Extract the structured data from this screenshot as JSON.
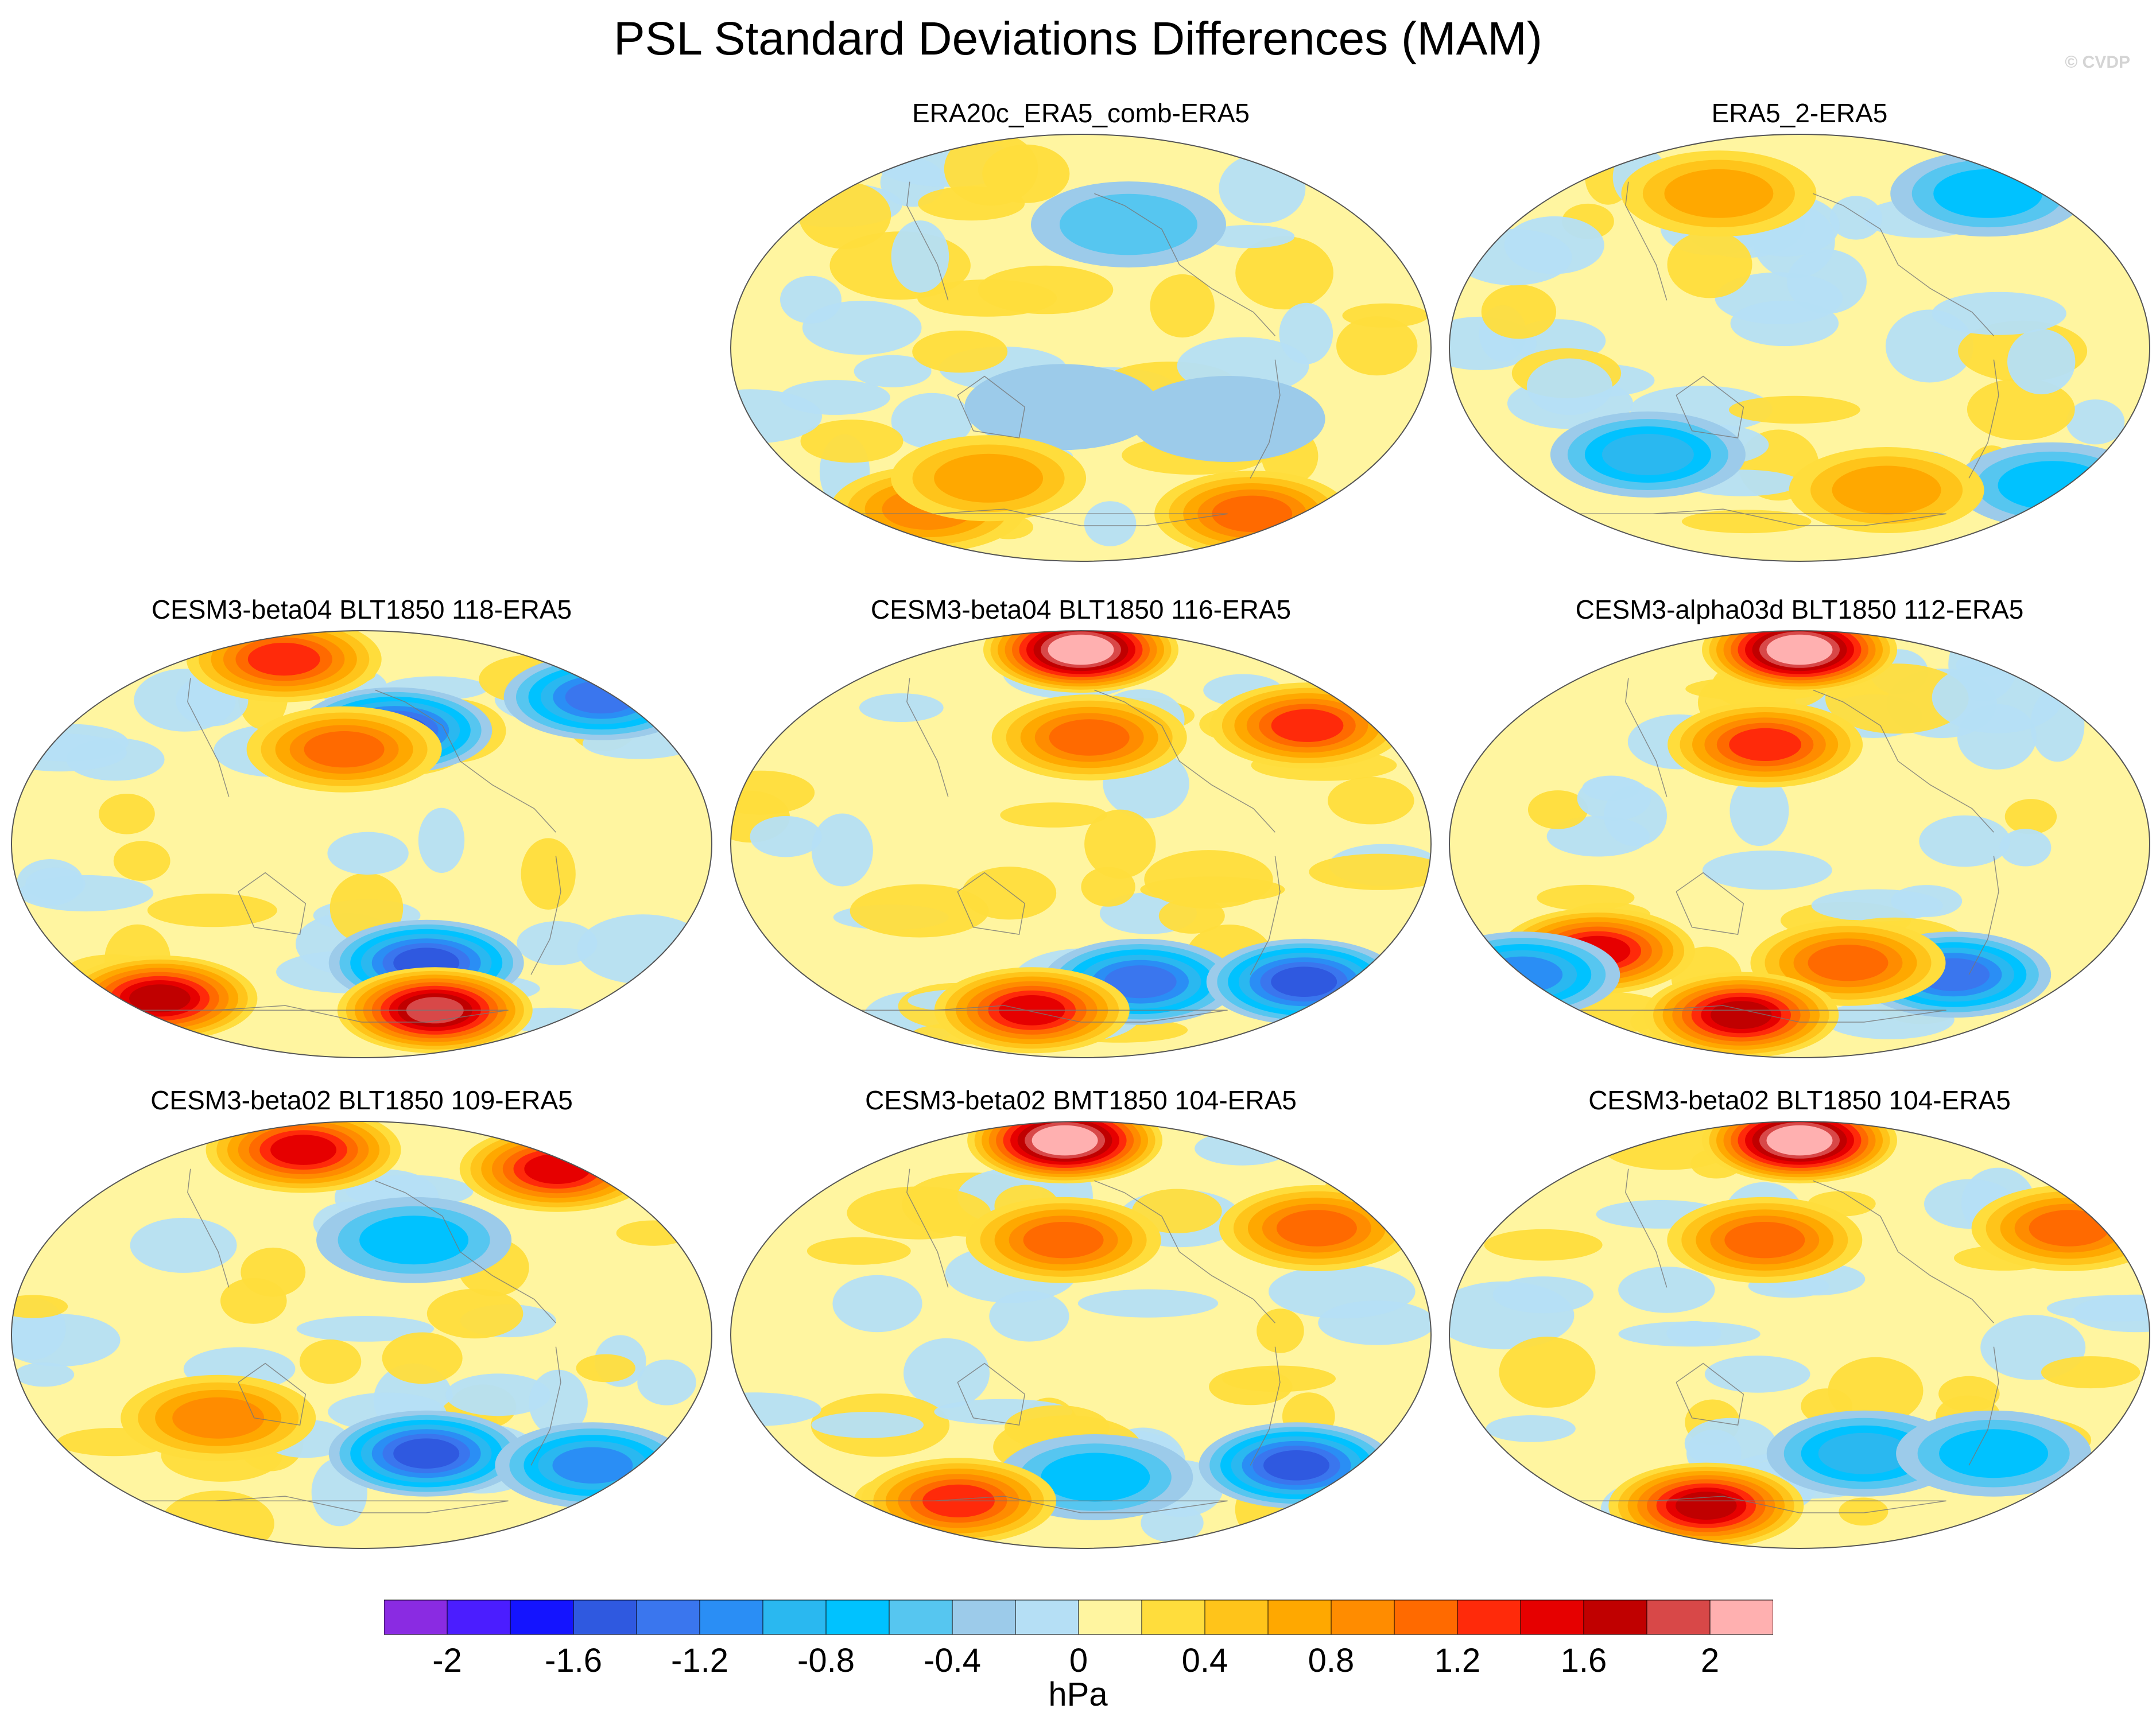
{
  "figure": {
    "title": "PSL Standard Deviations Differences (MAM)",
    "copyright": "© CVDP",
    "units": "hPa"
  },
  "panels": [
    {
      "title": "ERA20c_ERA5_comb-ERA5",
      "intensity": "weak",
      "features": [
        {
          "lon": -150,
          "lat": 52,
          "sign": "neg",
          "mag": 0.35
        },
        {
          "lon": -100,
          "lat": -30,
          "sign": "neg",
          "mag": 0.3
        },
        {
          "lon": 170,
          "lat": -25,
          "sign": "neg",
          "mag": 0.3
        },
        {
          "lon": -40,
          "lat": -70,
          "sign": "pos",
          "mag": 0.9
        },
        {
          "lon": 60,
          "lat": -68,
          "sign": "pos",
          "mag": 0.8
        },
        {
          "lon": 120,
          "lat": -55,
          "sign": "pos",
          "mag": 0.5
        }
      ]
    },
    {
      "title": "ERA5_2-ERA5",
      "intensity": "weak",
      "features": [
        {
          "lon": 90,
          "lat": -45,
          "sign": "neg",
          "mag": 0.8
        },
        {
          "lon": -10,
          "lat": -58,
          "sign": "neg",
          "mag": 0.7
        },
        {
          "lon": -40,
          "lat": 65,
          "sign": "neg",
          "mag": 0.7
        },
        {
          "lon": 120,
          "lat": 65,
          "sign": "pos",
          "mag": 0.5
        },
        {
          "lon": -120,
          "lat": -60,
          "sign": "pos",
          "mag": 0.6
        }
      ]
    },
    {
      "title": "CESM3-beta04 BLT1850 118-ERA5",
      "intensity": "strong",
      "features": [
        {
          "lon": -160,
          "lat": 48,
          "sign": "neg",
          "mag": 1.3
        },
        {
          "lon": 170,
          "lat": 40,
          "sign": "pos",
          "mag": 1.0
        },
        {
          "lon": -10,
          "lat": 62,
          "sign": "neg",
          "mag": 1.2
        },
        {
          "lon": -140,
          "lat": -50,
          "sign": "neg",
          "mag": 1.3
        },
        {
          "lon": -120,
          "lat": -70,
          "sign": "pos",
          "mag": 1.9
        },
        {
          "lon": 30,
          "lat": -65,
          "sign": "pos",
          "mag": 1.5
        },
        {
          "lon": 100,
          "lat": 78,
          "sign": "pos",
          "mag": 1.2
        }
      ]
    },
    {
      "title": "CESM3-beta04 BLT1850 116-ERA5",
      "intensity": "strong",
      "features": [
        {
          "lon": 180,
          "lat": 82,
          "sign": "pos",
          "mag": 2.1
        },
        {
          "lon": -175,
          "lat": 45,
          "sign": "pos",
          "mag": 1.0
        },
        {
          "lon": -40,
          "lat": 50,
          "sign": "pos",
          "mag": 1.1
        },
        {
          "lon": -140,
          "lat": -58,
          "sign": "neg",
          "mag": 1.1
        },
        {
          "lon": -30,
          "lat": -58,
          "sign": "neg",
          "mag": 1.3
        },
        {
          "lon": 140,
          "lat": -70,
          "sign": "pos",
          "mag": 1.4
        }
      ]
    },
    {
      "title": "CESM3-alpha03d BLT1850 112-ERA5",
      "intensity": "strong",
      "features": [
        {
          "lon": 180,
          "lat": 82,
          "sign": "pos",
          "mag": 2.1
        },
        {
          "lon": 160,
          "lat": 42,
          "sign": "pos",
          "mag": 1.1
        },
        {
          "lon": -80,
          "lat": -55,
          "sign": "neg",
          "mag": 1.2
        },
        {
          "lon": -150,
          "lat": -50,
          "sign": "pos",
          "mag": 1.0
        },
        {
          "lon": 60,
          "lat": -45,
          "sign": "pos",
          "mag": 1.3
        },
        {
          "lon": 0,
          "lat": -55,
          "sign": "neg",
          "mag": 1.0
        },
        {
          "lon": 130,
          "lat": -72,
          "sign": "pos",
          "mag": 1.5
        }
      ]
    },
    {
      "title": "CESM3-beta02 BLT1850 109-ERA5",
      "intensity": "strong",
      "features": [
        {
          "lon": 120,
          "lat": 78,
          "sign": "pos",
          "mag": 1.4
        },
        {
          "lon": -20,
          "lat": 70,
          "sign": "pos",
          "mag": 1.3
        },
        {
          "lon": -140,
          "lat": -50,
          "sign": "neg",
          "mag": 1.3
        },
        {
          "lon": -30,
          "lat": -55,
          "sign": "neg",
          "mag": 1.0
        },
        {
          "lon": -150,
          "lat": 40,
          "sign": "neg",
          "mag": 0.6
        },
        {
          "lon": 100,
          "lat": -35,
          "sign": "pos",
          "mag": 0.8
        }
      ]
    },
    {
      "title": "CESM3-beta02 BMT1850 104-ERA5",
      "intensity": "strong",
      "features": [
        {
          "lon": 160,
          "lat": 82,
          "sign": "pos",
          "mag": 2.1
        },
        {
          "lon": 170,
          "lat": 40,
          "sign": "pos",
          "mag": 1.0
        },
        {
          "lon": -40,
          "lat": 45,
          "sign": "pos",
          "mag": 1.0
        },
        {
          "lon": -40,
          "lat": -55,
          "sign": "neg",
          "mag": 1.4
        },
        {
          "lon": -170,
          "lat": -60,
          "sign": "neg",
          "mag": 0.7
        },
        {
          "lon": 80,
          "lat": -70,
          "sign": "pos",
          "mag": 1.2
        }
      ]
    },
    {
      "title": "CESM3-beta02 BLT1850 104-ERA5",
      "intensity": "strong",
      "features": [
        {
          "lon": 180,
          "lat": 82,
          "sign": "pos",
          "mag": 2.1
        },
        {
          "lon": -20,
          "lat": 45,
          "sign": "pos",
          "mag": 1.0
        },
        {
          "lon": 100,
          "lat": -72,
          "sign": "pos",
          "mag": 1.5
        },
        {
          "lon": -140,
          "lat": -50,
          "sign": "neg",
          "mag": 0.8
        },
        {
          "lon": -60,
          "lat": -50,
          "sign": "neg",
          "mag": 0.6
        },
        {
          "lon": 160,
          "lat": 40,
          "sign": "pos",
          "mag": 0.9
        }
      ]
    }
  ],
  "colorbar": {
    "colors": [
      "#8a2be2",
      "#4b1dff",
      "#1414ff",
      "#2f59e0",
      "#3a76ee",
      "#2a8ef5",
      "#2ab8f0",
      "#00c2ff",
      "#56c6f0",
      "#9ccbea",
      "#b5dff5",
      "#fff5a0",
      "#ffdd3c",
      "#ffc41a",
      "#ffa800",
      "#ff8c00",
      "#ff6a00",
      "#ff2a0a",
      "#e60000",
      "#c00000",
      "#d84848",
      "#ffb0b0"
    ],
    "ticks": [
      "-2",
      "-1.6",
      "-1.2",
      "-0.8",
      "-0.4",
      "0",
      "0.4",
      "0.8",
      "1.2",
      "1.6",
      "2"
    ]
  }
}
